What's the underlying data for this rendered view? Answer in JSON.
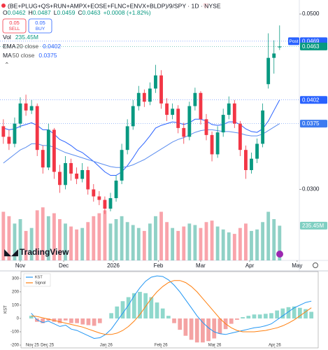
{
  "header": {
    "symbol": "(BE+PLUG+QS+RUN+AMPX+EOSE+FLNC+ENVX+BLDP)/9/SPY · 1D · NYSE",
    "ohlc": [
      {
        "label": "O",
        "value": 0.0462
      },
      {
        "label": "H",
        "value": 0.0487
      },
      {
        "label": "L",
        "value": 0.0459
      },
      {
        "label": "C",
        "value": 0.0463
      }
    ],
    "change": "+0.0008 (+1.82%)",
    "sell": {
      "price": 0.05,
      "label": "SELL"
    },
    "buy": {
      "price": 0.05,
      "label": "BUY"
    },
    "indicators": [
      {
        "name": "Vol",
        "value": "235.45M"
      },
      {
        "name": "EMA",
        "params": "20 close",
        "value": 0.0402
      },
      {
        "name": "MA",
        "params": "50 close",
        "value": 0.0375
      }
    ],
    "brand": "TradingView"
  },
  "chart_data": [
    {
      "type": "candlestick",
      "up_color": "#089981",
      "down_color": "#f23645",
      "open": [
        0.0372,
        0.036,
        0.0352,
        0.0375,
        0.0398,
        0.039,
        0.0395,
        0.0345,
        0.0325,
        0.0368,
        0.032,
        0.0305,
        0.033,
        0.0318,
        0.0312,
        0.0322,
        0.03,
        0.0292,
        0.0288,
        0.0278,
        0.029,
        0.031,
        0.0345,
        0.0372,
        0.0395,
        0.041,
        0.04,
        0.0415,
        0.043,
        0.0398,
        0.0385,
        0.0392,
        0.037,
        0.036,
        0.0395,
        0.041,
        0.038,
        0.0362,
        0.034,
        0.0365,
        0.0385,
        0.0398,
        0.0375,
        0.0345,
        0.0322,
        0.0335,
        0.0352,
        0.042,
        0.045,
        0.0462
      ],
      "high": [
        0.038,
        0.0368,
        0.0382,
        0.0405,
        0.0408,
        0.0402,
        0.0398,
        0.035,
        0.0375,
        0.037,
        0.0328,
        0.0338,
        0.0335,
        0.0325,
        0.033,
        0.0326,
        0.0306,
        0.0298,
        0.0292,
        0.0296,
        0.0316,
        0.0352,
        0.038,
        0.0402,
        0.0418,
        0.0414,
        0.0422,
        0.0442,
        0.0436,
        0.0404,
        0.0398,
        0.0396,
        0.0376,
        0.04,
        0.0416,
        0.0412,
        0.0386,
        0.0366,
        0.0372,
        0.0392,
        0.0406,
        0.0402,
        0.0378,
        0.035,
        0.0342,
        0.0358,
        0.0398,
        0.0478,
        0.047,
        0.0487
      ],
      "low": [
        0.0352,
        0.0345,
        0.0348,
        0.037,
        0.0384,
        0.0386,
        0.0338,
        0.0318,
        0.0322,
        0.0312,
        0.0296,
        0.03,
        0.031,
        0.0306,
        0.0308,
        0.0294,
        0.0286,
        0.0282,
        0.0272,
        0.0275,
        0.0286,
        0.0306,
        0.034,
        0.0368,
        0.039,
        0.0394,
        0.0396,
        0.041,
        0.0392,
        0.0378,
        0.038,
        0.0364,
        0.0352,
        0.0356,
        0.039,
        0.0374,
        0.0356,
        0.0332,
        0.0336,
        0.036,
        0.038,
        0.037,
        0.0338,
        0.0312,
        0.0318,
        0.033,
        0.0348,
        0.0415,
        0.0432,
        0.0459
      ],
      "close": [
        0.036,
        0.0352,
        0.0375,
        0.0398,
        0.039,
        0.0395,
        0.0345,
        0.0325,
        0.0368,
        0.032,
        0.0305,
        0.033,
        0.0318,
        0.0312,
        0.0322,
        0.03,
        0.0292,
        0.0288,
        0.0278,
        0.029,
        0.031,
        0.0345,
        0.0372,
        0.0395,
        0.041,
        0.04,
        0.0415,
        0.043,
        0.0398,
        0.0385,
        0.0392,
        0.037,
        0.036,
        0.0395,
        0.041,
        0.038,
        0.0362,
        0.034,
        0.0365,
        0.0385,
        0.0398,
        0.0375,
        0.0345,
        0.0322,
        0.0335,
        0.0352,
        0.039,
        0.045,
        0.0455,
        0.0463
      ],
      "series": [
        {
          "name": "EMA",
          "color": "#2962ff",
          "values": [
            0.037,
            0.0368,
            0.0369,
            0.0372,
            0.0374,
            0.0376,
            0.0373,
            0.0368,
            0.0368,
            0.0363,
            0.0357,
            0.0354,
            0.035,
            0.0345,
            0.0342,
            0.0337,
            0.0332,
            0.0326,
            0.032,
            0.0316,
            0.0316,
            0.032,
            0.0327,
            0.0336,
            0.0346,
            0.0353,
            0.0361,
            0.037,
            0.0373,
            0.0375,
            0.0377,
            0.0376,
            0.0374,
            0.0376,
            0.038,
            0.038,
            0.0378,
            0.0374,
            0.0373,
            0.0374,
            0.0377,
            0.0377,
            0.0374,
            0.0369,
            0.0366,
            0.0365,
            0.0369,
            0.0378,
            0.039,
            0.0402
          ]
        },
        {
          "name": "MA",
          "color": "#5b8def",
          "values": [
            0.033,
            0.0335,
            0.034,
            0.0345,
            0.0348,
            0.0352,
            0.0352,
            0.035,
            0.035,
            0.0348,
            0.0345,
            0.0342,
            0.034,
            0.0338,
            0.0336,
            0.0334,
            0.0332,
            0.033,
            0.0328,
            0.0326,
            0.0325,
            0.0325,
            0.0326,
            0.0328,
            0.0331,
            0.0334,
            0.0338,
            0.0342,
            0.0346,
            0.035,
            0.0354,
            0.0357,
            0.0359,
            0.0362,
            0.0365,
            0.0367,
            0.0368,
            0.0368,
            0.0367,
            0.0366,
            0.0366,
            0.0365,
            0.0364,
            0.0362,
            0.0361,
            0.0361,
            0.0363,
            0.0367,
            0.0371,
            0.0375
          ]
        }
      ],
      "volume": {
        "ylim": [
          0,
          380
        ],
        "values": [
          330,
          300,
          250,
          280,
          200,
          220,
          340,
          360,
          300,
          320,
          280,
          250,
          230,
          210,
          220,
          260,
          300,
          320,
          340,
          250,
          280,
          300,
          260,
          240,
          220,
          200,
          250,
          300,
          330,
          260,
          220,
          200,
          230,
          250,
          240,
          220,
          260,
          270,
          230,
          210,
          190,
          180,
          220,
          250,
          200,
          210,
          260,
          330,
          280,
          235.45
        ]
      },
      "ylim": [
        0.0219,
        0.0516
      ],
      "yticks": [
        {
          "value": 0.05,
          "label": "0.0500"
        },
        {
          "value": 0.03,
          "label": "0.0300"
        }
      ],
      "xlim": [
        -0.6,
        52.5
      ],
      "xticks": [
        {
          "value": 3,
          "label": "Nov"
        },
        {
          "value": 10.7,
          "label": "Dec"
        },
        {
          "value": 19.5,
          "label": "2026"
        },
        {
          "value": 27.5,
          "label": "Feb"
        },
        {
          "value": 35,
          "label": "Mar"
        },
        {
          "value": 43.7,
          "label": "Apr"
        },
        {
          "value": 52.1,
          "label": "May"
        }
      ],
      "badges": [
        {
          "value": 0.0469,
          "tag": "Post",
          "color": "#2962ff"
        },
        {
          "value": 0.0463,
          "color": "#089981"
        },
        {
          "value": 0.0402,
          "color": "#2962ff"
        },
        {
          "value": 0.0375,
          "color": "#3d7bf0"
        }
      ]
    },
    {
      "type": "line",
      "ylabel": "KST",
      "series": [
        {
          "name": "KST",
          "color": "#2196f3",
          "values": [
            40,
            -10,
            -30,
            -20,
            -40,
            -60,
            -50,
            -80,
            -90,
            -110,
            -130,
            -150,
            -145,
            -120,
            -80,
            -20,
            40,
            100,
            170,
            230,
            280,
            310,
            320,
            315,
            290,
            250,
            200,
            140,
            80,
            20,
            -30,
            -70,
            -100,
            -115,
            -120,
            -110,
            -100,
            -90,
            -80,
            -70,
            -65,
            -55,
            -40,
            -10,
            20,
            50,
            80,
            100,
            120,
            130
          ]
        },
        {
          "name": "Signal",
          "color": "#ff7f0e",
          "values": [
            20,
            15,
            5,
            -5,
            -15,
            -25,
            -35,
            -45,
            -55,
            -65,
            -80,
            -95,
            -110,
            -120,
            -120,
            -110,
            -90,
            -60,
            -20,
            30,
            90,
            150,
            200,
            240,
            270,
            285,
            285,
            270,
            240,
            200,
            150,
            100,
            50,
            0,
            -40,
            -70,
            -90,
            -100,
            -100,
            -100,
            -95,
            -90,
            -80,
            -70,
            -55,
            -35,
            -10,
            20,
            50,
            80
          ]
        }
      ],
      "histogram": {
        "up_color": "#8fd8cc",
        "down_color": "#f4a3a3",
        "values": [
          20,
          -25,
          -35,
          -15,
          -25,
          -35,
          -15,
          -35,
          -35,
          -45,
          -50,
          -55,
          -35,
          0,
          40,
          90,
          130,
          160,
          190,
          200,
          190,
          160,
          120,
          75,
          20,
          -35,
          -85,
          -130,
          -160,
          -180,
          -180,
          -170,
          -150,
          -115,
          -80,
          -40,
          -10,
          10,
          20,
          30,
          30,
          35,
          40,
          60,
          75,
          85,
          90,
          80,
          70,
          50
        ]
      },
      "ylim": [
        -221,
        352
      ],
      "yticks": [
        -200,
        -100,
        0,
        100,
        200,
        300
      ],
      "xlim": [
        -1.8,
        50.2
      ],
      "xticks": [
        {
          "value": 0.2,
          "label": "Nov 25"
        },
        {
          "value": 2.8,
          "label": "Dec 25"
        },
        {
          "value": 13.1,
          "label": "Jan 26"
        },
        {
          "value": 22.7,
          "label": "Feb 26"
        },
        {
          "value": 32.1,
          "label": "Mar 26"
        },
        {
          "value": 42.6,
          "label": "Apr 26"
        }
      ]
    }
  ]
}
